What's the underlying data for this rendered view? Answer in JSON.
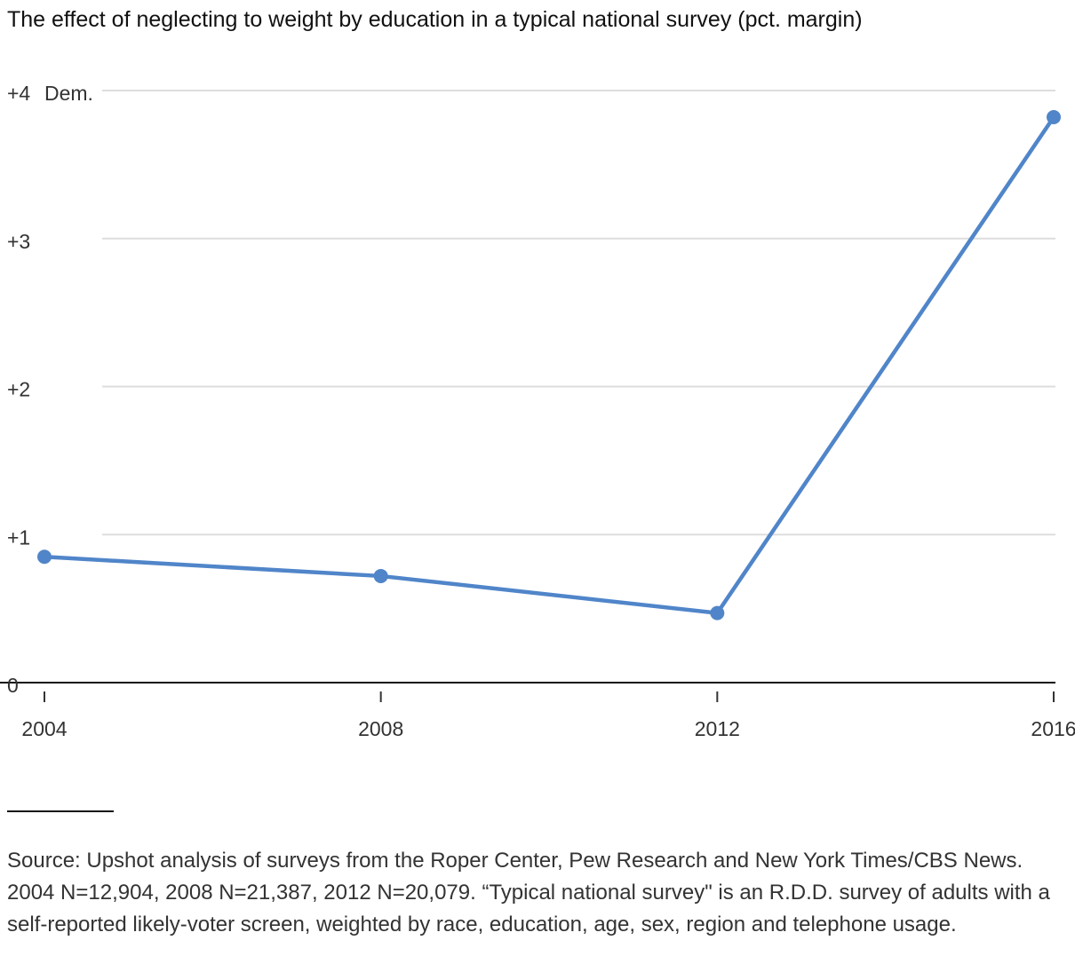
{
  "chart_data": {
    "type": "line",
    "title": "The effect of neglecting to weight by education in a typical national survey (pct. margin)",
    "x": [
      2004,
      2008,
      2012,
      2016
    ],
    "series": [
      {
        "values": [
          0.85,
          0.72,
          0.47,
          3.82
        ]
      }
    ],
    "x_tick_labels": [
      "2004",
      "2008",
      "2012",
      "2016"
    ],
    "y_ticks": [
      0,
      1,
      2,
      3,
      4
    ],
    "y_tick_labels": [
      "0",
      "+1",
      "+2",
      "+3",
      "+4"
    ],
    "y_top_annotation": "Dem.",
    "xlim": [
      2004,
      2016
    ],
    "ylim": [
      0,
      4
    ],
    "grid": true,
    "colors": {
      "line": "#5085c9",
      "grid": "#dddddd",
      "baseline": "#111111"
    }
  },
  "footer": {
    "source": "Source: Upshot analysis of surveys from the Roper Center, Pew Research and New York Times/CBS News. 2004 N=12,904, 2008 N=21,387, 2012 N=20,079. “Typical national survey\" is an R.D.D. survey of adults with a self-reported likely-voter screen, weighted by race, education, age, sex, region and telephone usage."
  }
}
